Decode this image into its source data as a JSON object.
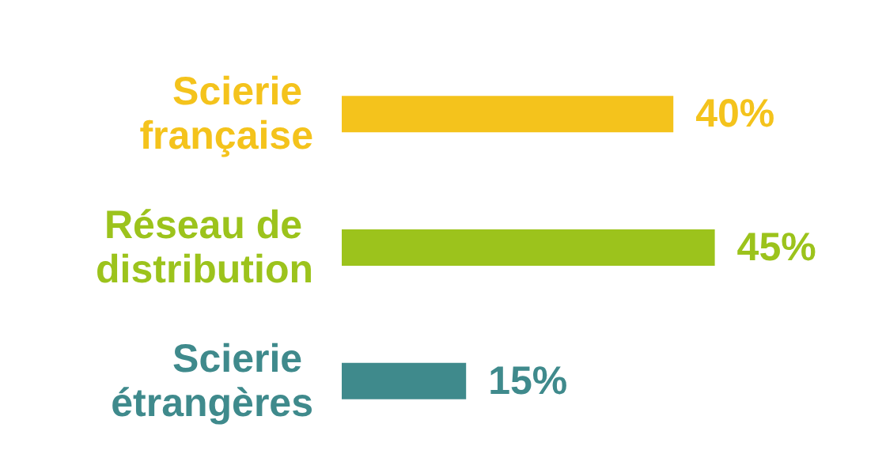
{
  "chart_data": {
    "type": "bar",
    "orientation": "horizontal",
    "categories": [
      "Scierie française",
      "Réseau de distribution",
      "Scierie étrangères"
    ],
    "values": [
      40,
      45,
      15
    ],
    "colors": [
      "#f4c31c",
      "#9cc31c",
      "#3f8a8c"
    ],
    "value_labels": [
      "40%",
      "45%",
      "15%"
    ]
  }
}
